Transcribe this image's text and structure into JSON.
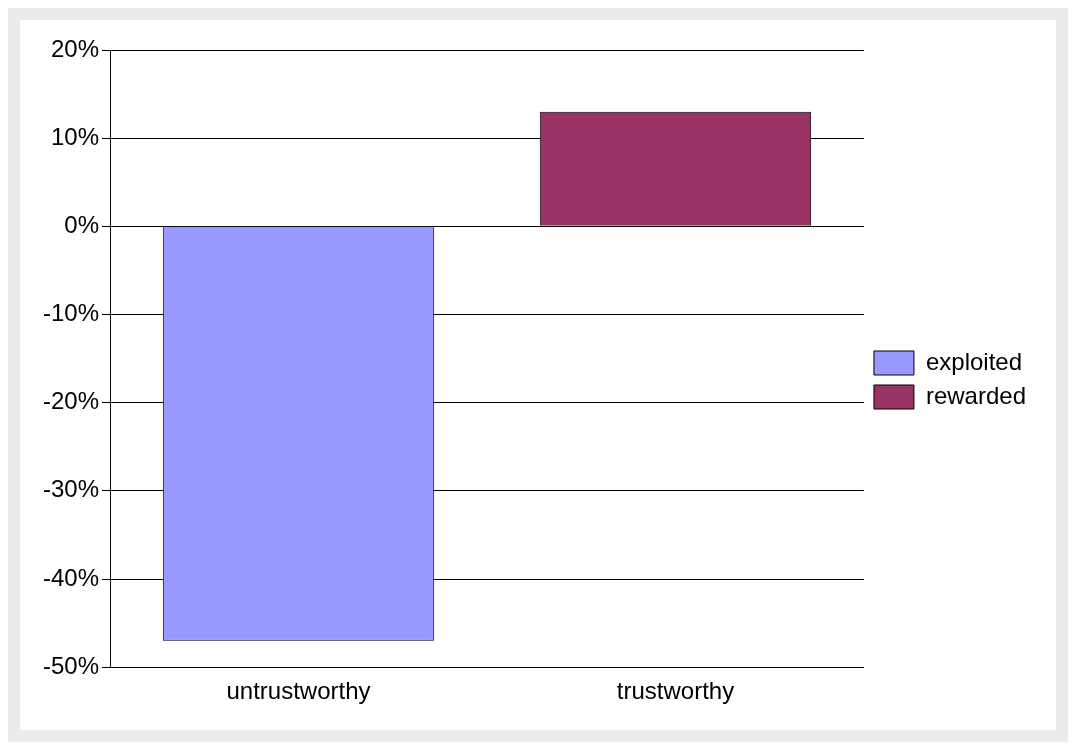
{
  "chart_data": {
    "type": "bar",
    "categories": [
      "untrustworthy",
      "trustworthy"
    ],
    "series": [
      {
        "name": "exploited",
        "color": "#9999ff",
        "values": [
          -47,
          null
        ]
      },
      {
        "name": "rewarded",
        "color": "#993366",
        "values": [
          null,
          13
        ]
      }
    ],
    "ylim": [
      -50,
      20
    ],
    "yticks": [
      {
        "value": -50,
        "label": "-50%"
      },
      {
        "value": -40,
        "label": "-40%"
      },
      {
        "value": -30,
        "label": "-30%"
      },
      {
        "value": -20,
        "label": "-20%"
      },
      {
        "value": -10,
        "label": "-10%"
      },
      {
        "value": 0,
        "label": "0%"
      },
      {
        "value": 10,
        "label": "10%"
      },
      {
        "value": 20,
        "label": "20%"
      }
    ],
    "grid": "y",
    "legend": "right"
  }
}
